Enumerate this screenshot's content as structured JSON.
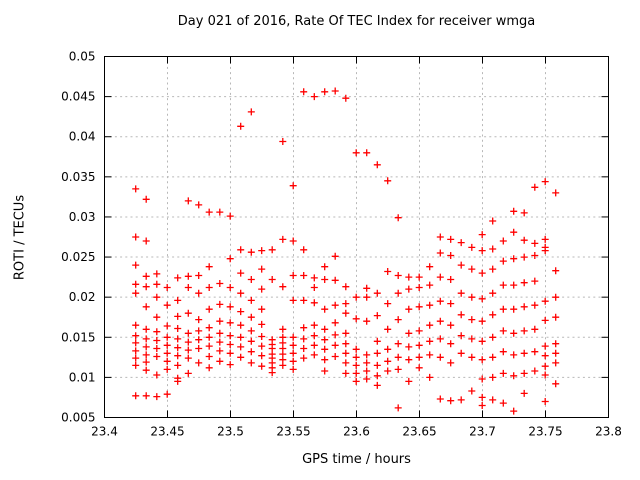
{
  "chart_data": {
    "type": "scatter",
    "title": "Day 021 of 2016, Rate Of TEC Index for receiver wmga",
    "xlabel": "GPS time / hours",
    "ylabel": "ROTI / TECUs",
    "xlim": [
      23.4,
      23.8
    ],
    "ylim": [
      0.005,
      0.05
    ],
    "grid": true,
    "legend": "none",
    "colors": {
      "marker": "#ff0000",
      "grid": "#b8b8b8",
      "border": "#000000",
      "background": "#ffffff",
      "text": "#000000"
    },
    "marker": {
      "shape": "plus",
      "size": 7,
      "stroke_width": 1.3
    },
    "xticks": [
      {
        "v": 23.4,
        "label": "23.4"
      },
      {
        "v": 23.45,
        "label": "23.45"
      },
      {
        "v": 23.5,
        "label": "23.5"
      },
      {
        "v": 23.55,
        "label": "23.55"
      },
      {
        "v": 23.6,
        "label": "23.6"
      },
      {
        "v": 23.65,
        "label": "23.65"
      },
      {
        "v": 23.7,
        "label": "23.7"
      },
      {
        "v": 23.75,
        "label": "23.75"
      },
      {
        "v": 23.8,
        "label": "23.8"
      }
    ],
    "yticks": [
      {
        "v": 0.005,
        "label": "0.005"
      },
      {
        "v": 0.01,
        "label": "0.01"
      },
      {
        "v": 0.015,
        "label": "0.015"
      },
      {
        "v": 0.02,
        "label": "0.02"
      },
      {
        "v": 0.025,
        "label": "0.025"
      },
      {
        "v": 0.03,
        "label": "0.03"
      },
      {
        "v": 0.035,
        "label": "0.035"
      },
      {
        "v": 0.04,
        "label": "0.04"
      },
      {
        "v": 0.045,
        "label": "0.045"
      },
      {
        "v": 0.05,
        "label": "0.05"
      }
    ],
    "columns": [
      {
        "x": 23.4248,
        "y": [
          0.0335,
          0.0275,
          0.024,
          0.0216,
          0.0205,
          0.0165,
          0.0152,
          0.0143,
          0.0133,
          0.0124,
          0.0115,
          0.0077
        ]
      },
      {
        "x": 23.4331,
        "y": [
          0.0322,
          0.027,
          0.0226,
          0.0213,
          0.0188,
          0.016,
          0.0148,
          0.0138,
          0.0128,
          0.0119,
          0.0109,
          0.0077
        ]
      },
      {
        "x": 23.4415,
        "y": [
          0.0229,
          0.0216,
          0.02,
          0.0175,
          0.0157,
          0.0146,
          0.0136,
          0.0126,
          0.0103,
          0.0076
        ]
      },
      {
        "x": 23.4498,
        "y": [
          0.0212,
          0.019,
          0.0164,
          0.015,
          0.014,
          0.013,
          0.012,
          0.011,
          0.0079
        ]
      },
      {
        "x": 23.4581,
        "y": [
          0.0224,
          0.0196,
          0.0176,
          0.0161,
          0.0148,
          0.0137,
          0.0127,
          0.0115,
          0.0099,
          0.0095
        ]
      },
      {
        "x": 23.4665,
        "y": [
          0.032,
          0.0226,
          0.0212,
          0.018,
          0.0155,
          0.0144,
          0.0134,
          0.0124,
          0.0105
        ]
      },
      {
        "x": 23.4748,
        "y": [
          0.0315,
          0.0227,
          0.0205,
          0.0172,
          0.0158,
          0.0147,
          0.0136,
          0.0118
        ]
      },
      {
        "x": 23.4831,
        "y": [
          0.0306,
          0.0238,
          0.0212,
          0.0185,
          0.0162,
          0.015,
          0.0139,
          0.0126,
          0.0112
        ]
      },
      {
        "x": 23.4915,
        "y": [
          0.0306,
          0.0217,
          0.0191,
          0.017,
          0.0155,
          0.0144,
          0.0133,
          0.012
        ]
      },
      {
        "x": 23.4998,
        "y": [
          0.0301,
          0.0248,
          0.0212,
          0.0188,
          0.0168,
          0.0152,
          0.0141,
          0.013,
          0.0116
        ]
      },
      {
        "x": 23.5081,
        "y": [
          0.0413,
          0.0259,
          0.023,
          0.0205,
          0.0182,
          0.0165,
          0.015,
          0.0138,
          0.0125
        ]
      },
      {
        "x": 23.5165,
        "y": [
          0.0431,
          0.0256,
          0.0222,
          0.0196,
          0.0175,
          0.0158,
          0.0145,
          0.0132,
          0.0118
        ]
      },
      {
        "x": 23.5248,
        "y": [
          0.0258,
          0.0235,
          0.021,
          0.0185,
          0.0166,
          0.0151,
          0.0139,
          0.0127,
          0.0114
        ]
      },
      {
        "x": 23.5331,
        "y": [
          0.0259,
          0.0222,
          0.0147,
          0.0141,
          0.0136,
          0.0129,
          0.0124,
          0.0118,
          0.0112,
          0.0106
        ]
      },
      {
        "x": 23.5415,
        "y": [
          0.0394,
          0.0272,
          0.0213,
          0.016,
          0.015,
          0.0143,
          0.0136,
          0.0129,
          0.0122,
          0.0115
        ]
      },
      {
        "x": 23.5498,
        "y": [
          0.0339,
          0.027,
          0.0227,
          0.0196,
          0.015,
          0.014,
          0.013,
          0.012,
          0.011
        ]
      },
      {
        "x": 23.5581,
        "y": [
          0.0456,
          0.0259,
          0.0227,
          0.0196,
          0.0162,
          0.0148,
          0.0136,
          0.0124
        ]
      },
      {
        "x": 23.5665,
        "y": [
          0.045,
          0.0224,
          0.0212,
          0.0193,
          0.0165,
          0.0152,
          0.014,
          0.0128
        ]
      },
      {
        "x": 23.5748,
        "y": [
          0.0456,
          0.0238,
          0.0222,
          0.0185,
          0.016,
          0.0147,
          0.0135,
          0.0122,
          0.0108
        ]
      },
      {
        "x": 23.5831,
        "y": [
          0.0457,
          0.0251,
          0.0221,
          0.019,
          0.0168,
          0.0153,
          0.014,
          0.0126
        ]
      },
      {
        "x": 23.5915,
        "y": [
          0.0448,
          0.0213,
          0.0192,
          0.018,
          0.0155,
          0.0142,
          0.013,
          0.0118,
          0.0105
        ]
      },
      {
        "x": 23.5998,
        "y": [
          0.038,
          0.02,
          0.0173,
          0.0135,
          0.0125,
          0.0115,
          0.0105,
          0.0095
        ]
      },
      {
        "x": 23.6081,
        "y": [
          0.038,
          0.0211,
          0.02,
          0.017,
          0.0128,
          0.0118,
          0.0108,
          0.0098
        ]
      },
      {
        "x": 23.6165,
        "y": [
          0.0365,
          0.0205,
          0.0177,
          0.0145,
          0.013,
          0.0115,
          0.0102,
          0.009
        ]
      },
      {
        "x": 23.6248,
        "y": [
          0.0345,
          0.0232,
          0.0192,
          0.016,
          0.0135,
          0.012,
          0.0108
        ]
      },
      {
        "x": 23.6331,
        "y": [
          0.0299,
          0.0227,
          0.0205,
          0.0172,
          0.0142,
          0.0125,
          0.011,
          0.0062
        ]
      },
      {
        "x": 23.6415,
        "y": [
          0.0225,
          0.021,
          0.0185,
          0.0155,
          0.0138,
          0.0122,
          0.0095
        ]
      },
      {
        "x": 23.6498,
        "y": [
          0.0225,
          0.0212,
          0.0188,
          0.0158,
          0.014,
          0.0125,
          0.0112
        ]
      },
      {
        "x": 23.6581,
        "y": [
          0.0238,
          0.0215,
          0.019,
          0.0165,
          0.0145,
          0.0128,
          0.01
        ]
      },
      {
        "x": 23.6665,
        "y": [
          0.0275,
          0.0255,
          0.0225,
          0.0195,
          0.017,
          0.0148,
          0.0125,
          0.0073
        ]
      },
      {
        "x": 23.6748,
        "y": [
          0.0272,
          0.0252,
          0.0222,
          0.0192,
          0.0165,
          0.0142,
          0.0118,
          0.0071
        ]
      },
      {
        "x": 23.6831,
        "y": [
          0.0268,
          0.024,
          0.0205,
          0.0178,
          0.0152,
          0.013,
          0.0072
        ]
      },
      {
        "x": 23.6915,
        "y": [
          0.0262,
          0.0235,
          0.02,
          0.0172,
          0.0148,
          0.0125,
          0.0083
        ]
      },
      {
        "x": 23.6998,
        "y": [
          0.0278,
          0.0258,
          0.023,
          0.0198,
          0.017,
          0.0145,
          0.0122,
          0.0098,
          0.0075,
          0.0065
        ]
      },
      {
        "x": 23.7081,
        "y": [
          0.0295,
          0.026,
          0.0235,
          0.0205,
          0.0178,
          0.015,
          0.0125,
          0.01,
          0.0072
        ]
      },
      {
        "x": 23.7165,
        "y": [
          0.027,
          0.0245,
          0.0215,
          0.0185,
          0.0158,
          0.0132,
          0.0105,
          0.0068
        ]
      },
      {
        "x": 23.7248,
        "y": [
          0.0307,
          0.0281,
          0.0248,
          0.0215,
          0.0185,
          0.0155,
          0.0128,
          0.0102,
          0.0058
        ]
      },
      {
        "x": 23.7331,
        "y": [
          0.0305,
          0.0271,
          0.025,
          0.0218,
          0.0188,
          0.0158,
          0.013,
          0.0105,
          0.008
        ]
      },
      {
        "x": 23.7415,
        "y": [
          0.0337,
          0.0267,
          0.0252,
          0.022,
          0.019,
          0.016,
          0.0132,
          0.0108
        ]
      },
      {
        "x": 23.7498,
        "y": [
          0.0344,
          0.0272,
          0.0262,
          0.0258,
          0.0195,
          0.0171,
          0.0139,
          0.0127,
          0.0114,
          0.0103,
          0.007
        ]
      },
      {
        "x": 23.7581,
        "y": [
          0.033,
          0.0233,
          0.02,
          0.0175,
          0.0142,
          0.013,
          0.0118,
          0.0092
        ]
      }
    ]
  }
}
